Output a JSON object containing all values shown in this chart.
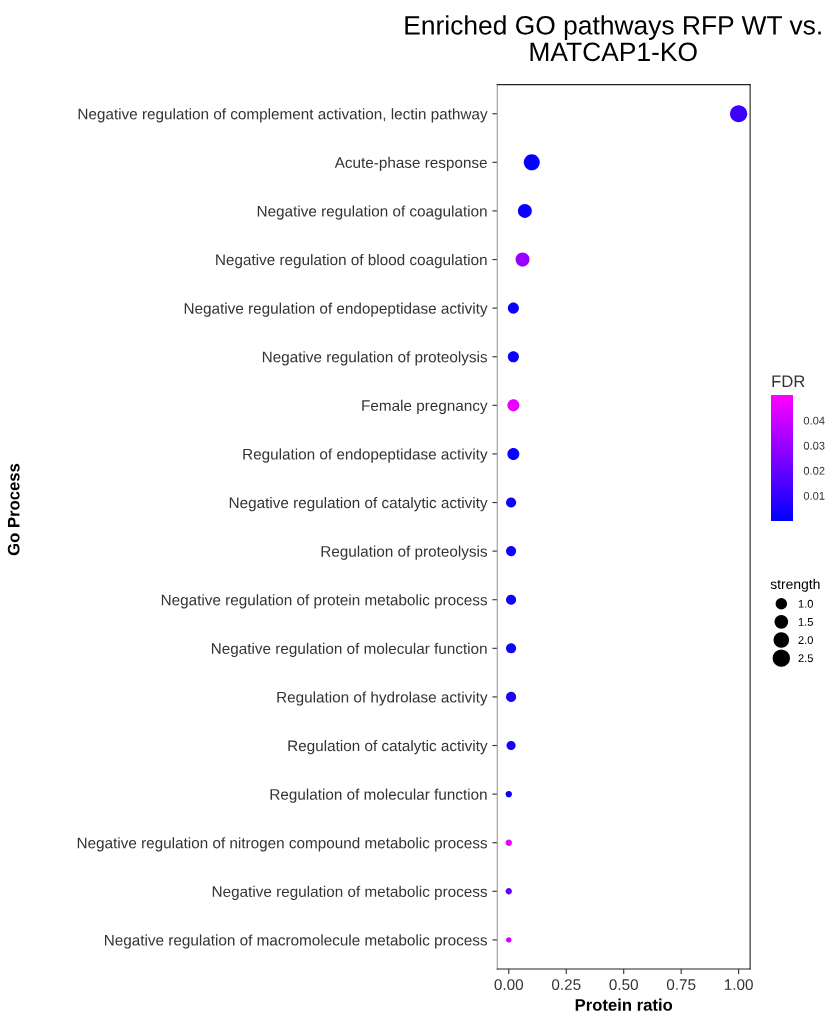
{
  "chart_data": {
    "type": "bubble",
    "title": "Enriched GO pathways RFP WT vs.\nMATCAP1-KO",
    "xlabel": "Protein ratio",
    "ylabel": "Go Process",
    "clabel": "FDR",
    "legend_title": "strength",
    "categories": [
      "Negative regulation of complement activation, lectin pathway",
      "Acute-phase response",
      "Negative regulation of coagulation",
      "Negative regulation of blood coagulation",
      "Negative regulation of endopeptidase activity",
      "Negative regulation of proteolysis",
      "Female pregnancy",
      "Regulation of endopeptidase activity",
      "Negative regulation of catalytic activity",
      "Regulation of proteolysis",
      "Negative regulation of protein metabolic process",
      "Negative regulation of molecular function",
      "Regulation of hydrolase activity",
      "Regulation of catalytic activity",
      "Regulation of molecular function",
      "Negative regulation of nitrogen compound metabolic process",
      "Negative regulation of metabolic process",
      "Negative regulation of macromolecule metabolic process"
    ],
    "orientation": "horizontal",
    "values": [
      1.0,
      0.1,
      0.07,
      0.06,
      0.02,
      0.02,
      0.02,
      0.02,
      0.01,
      0.01,
      0.01,
      0.01,
      0.01,
      0.01,
      0.0,
      0.0,
      0.0,
      0.0
    ],
    "sizes": [
      2.9,
      2.5,
      1.9,
      1.9,
      1.2,
      1.2,
      1.4,
      1.4,
      1.0,
      1.0,
      1.0,
      1.0,
      1.0,
      0.8,
      0.4,
      0.4,
      0.4,
      0.3
    ],
    "cvalues": [
      0.012,
      0.001,
      0.002,
      0.03,
      0.002,
      0.002,
      0.046,
      0.002,
      0.003,
      0.003,
      0.003,
      0.003,
      0.006,
      0.004,
      0.002,
      0.046,
      0.02,
      0.042
    ],
    "size_legend": [
      {
        "value": 1.0,
        "label": "1.0"
      },
      {
        "value": 1.5,
        "label": "1.5"
      },
      {
        "value": 2.0,
        "label": "2.0"
      },
      {
        "value": 2.5,
        "label": "2.5"
      }
    ],
    "clim": [
      0.0,
      0.05
    ],
    "cticks": [
      0.01,
      0.02,
      0.03,
      0.04
    ],
    "xlim": [
      -0.05,
      1.05
    ],
    "xticks": [
      {
        "value": 0,
        "label": "0.00"
      },
      {
        "value": 0.25,
        "label": "0.25"
      },
      {
        "value": 0.5,
        "label": "0.50"
      },
      {
        "value": 0.75,
        "label": "0.75"
      },
      {
        "value": 1.0,
        "label": "1.00"
      }
    ],
    "grid": false
  }
}
